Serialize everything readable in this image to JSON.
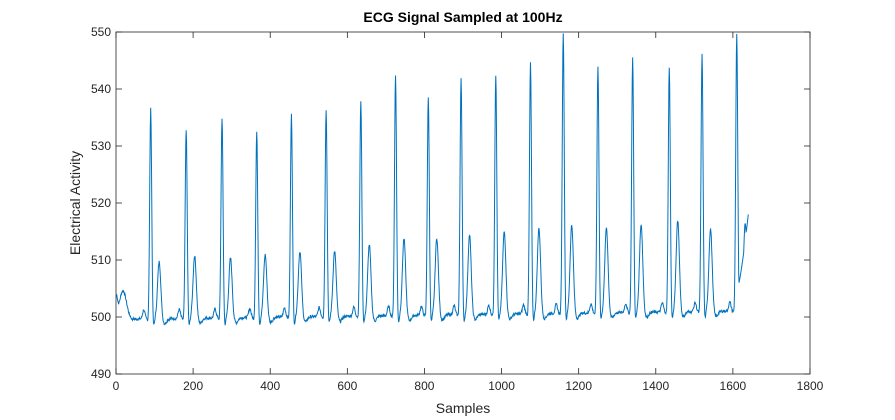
{
  "chart_data": {
    "type": "line",
    "title": "ECG Signal Sampled at 100Hz",
    "xlabel": "Samples",
    "ylabel": "Electrical Activity",
    "xlim": [
      0,
      1800
    ],
    "ylim": [
      490,
      550
    ],
    "xticks": [
      0,
      200,
      400,
      600,
      800,
      1000,
      1200,
      1400,
      1600,
      1800
    ],
    "yticks": [
      490,
      500,
      510,
      520,
      530,
      540,
      550
    ],
    "grid": false,
    "legend": "none",
    "colors": {
      "line": "#0072bd",
      "axis": "#262626",
      "background": "#ffffff"
    },
    "series": [
      {
        "name": "",
        "beats": [
          {
            "r": 90,
            "peak": 536.5,
            "t": 510.5
          },
          {
            "r": 182,
            "peak": 533.0,
            "t": 511.5
          },
          {
            "r": 275,
            "peak": 535.0,
            "t": 511.0
          },
          {
            "r": 365,
            "peak": 532.5,
            "t": 511.5
          },
          {
            "r": 455,
            "peak": 535.5,
            "t": 512.0
          },
          {
            "r": 545,
            "peak": 536.5,
            "t": 512.0
          },
          {
            "r": 635,
            "peak": 538.0,
            "t": 513.0
          },
          {
            "r": 725,
            "peak": 542.5,
            "t": 514.0
          },
          {
            "r": 810,
            "peak": 538.5,
            "t": 514.0
          },
          {
            "r": 895,
            "peak": 542.0,
            "t": 514.5
          },
          {
            "r": 985,
            "peak": 542.5,
            "t": 515.0
          },
          {
            "r": 1075,
            "peak": 544.5,
            "t": 515.5
          },
          {
            "r": 1160,
            "peak": 550.0,
            "t": 516.0
          },
          {
            "r": 1250,
            "peak": 544.0,
            "t": 515.5
          },
          {
            "r": 1340,
            "peak": 545.5,
            "t": 516.0
          },
          {
            "r": 1435,
            "peak": 544.0,
            "t": 516.5
          },
          {
            "r": 1520,
            "peak": 546.0,
            "t": 515.0
          },
          {
            "r": 1610,
            "peak": 549.5,
            "t": 516.0
          }
        ],
        "start": {
          "x": 1,
          "y": 503.0
        },
        "end": {
          "x": 1640,
          "y": 518.0
        }
      }
    ]
  }
}
